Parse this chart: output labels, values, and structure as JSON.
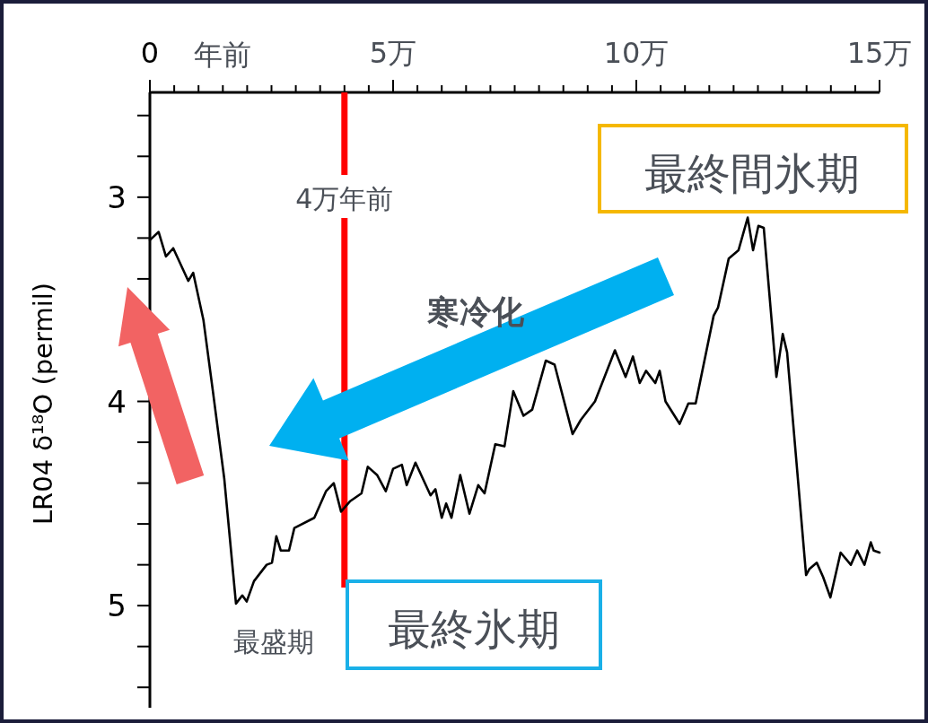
{
  "chart_data": {
    "type": "line",
    "xlabel": "年前",
    "ylabel": "LR04 δ¹⁸O (permil)",
    "xlim": [
      0,
      15
    ],
    "xticks": [
      {
        "value": 0,
        "label": "0"
      },
      {
        "value": 0.5,
        "label": null
      },
      {
        "value": 1,
        "label": null
      },
      {
        "value": 1.5,
        "label": null
      },
      {
        "value": 2,
        "label": null
      },
      {
        "value": 2.5,
        "label": null
      },
      {
        "value": 3,
        "label": null
      },
      {
        "value": 3.5,
        "label": null
      },
      {
        "value": 4,
        "label": null
      },
      {
        "value": 4.5,
        "label": null
      },
      {
        "value": 5,
        "label": "5万"
      },
      {
        "value": 5.5,
        "label": null
      },
      {
        "value": 6,
        "label": null
      },
      {
        "value": 6.5,
        "label": null
      },
      {
        "value": 7,
        "label": null
      },
      {
        "value": 7.5,
        "label": null
      },
      {
        "value": 8,
        "label": null
      },
      {
        "value": 8.5,
        "label": null
      },
      {
        "value": 9,
        "label": null
      },
      {
        "value": 9.5,
        "label": null
      },
      {
        "value": 10,
        "label": "10万"
      },
      {
        "value": 10.5,
        "label": null
      },
      {
        "value": 11,
        "label": null
      },
      {
        "value": 11.5,
        "label": null
      },
      {
        "value": 12,
        "label": null
      },
      {
        "value": 12.5,
        "label": null
      },
      {
        "value": 13,
        "label": null
      },
      {
        "value": 13.5,
        "label": null
      },
      {
        "value": 14,
        "label": null
      },
      {
        "value": 14.5,
        "label": null
      },
      {
        "value": 15,
        "label": "15万"
      }
    ],
    "ylim": [
      5.5,
      2.5
    ],
    "yticks": [
      {
        "value": 2.6,
        "label": null
      },
      {
        "value": 2.8,
        "label": null
      },
      3,
      {
        "value": 3.2,
        "label": null
      },
      {
        "value": 3.4,
        "label": null
      },
      {
        "value": 3.6,
        "label": null
      },
      {
        "value": 3.8,
        "label": null
      },
      4,
      {
        "value": 4.2,
        "label": null
      },
      {
        "value": 4.4,
        "label": null
      },
      {
        "value": 4.6,
        "label": null
      },
      {
        "value": 4.8,
        "label": null
      },
      5,
      {
        "value": 5.2,
        "label": null
      },
      {
        "value": 5.4,
        "label": null
      }
    ],
    "series": [
      {
        "color": "#000000",
        "x": [
          0,
          0.18,
          0.33,
          0.48,
          0.79,
          0.89,
          1.1,
          1.29,
          1.53,
          1.77,
          1.9,
          1.99,
          2.14,
          2.4,
          2.51,
          2.6,
          2.69,
          2.86,
          2.97,
          3.38,
          3.62,
          3.78,
          3.93,
          4.11,
          4.35,
          4.48,
          4.67,
          4.85,
          5.0,
          5.18,
          5.28,
          5.46,
          5.77,
          5.87,
          6.0,
          6.09,
          6.2,
          6.38,
          6.57,
          6.75,
          6.88,
          7.1,
          7.29,
          7.47,
          7.68,
          7.86,
          8.14,
          8.32,
          8.69,
          8.86,
          9.15,
          9.56,
          9.78,
          9.93,
          10.07,
          10.2,
          10.39,
          10.48,
          10.6,
          10.89,
          11.07,
          11.22,
          11.59,
          11.68,
          11.9,
          12.1,
          12.29,
          12.4,
          12.51,
          12.62,
          12.88,
          13.01,
          13.1,
          13.49,
          13.56,
          13.71,
          13.84,
          13.99,
          14.2,
          14.41,
          14.54,
          14.69,
          14.82,
          14.88,
          15.0
        ],
        "values": [
          3.21,
          3.17,
          3.29,
          3.25,
          3.41,
          3.37,
          3.6,
          3.94,
          4.38,
          4.99,
          4.95,
          4.98,
          4.88,
          4.8,
          4.79,
          4.66,
          4.73,
          4.73,
          4.62,
          4.57,
          4.44,
          4.4,
          4.54,
          4.49,
          4.45,
          4.32,
          4.36,
          4.44,
          4.33,
          4.31,
          4.41,
          4.3,
          4.46,
          4.43,
          4.57,
          4.5,
          4.57,
          4.36,
          4.55,
          4.41,
          4.45,
          4.21,
          4.22,
          3.95,
          4.07,
          4.04,
          3.8,
          3.82,
          4.16,
          4.09,
          4.0,
          3.75,
          3.88,
          3.78,
          3.91,
          3.85,
          3.91,
          3.85,
          4.0,
          4.11,
          4.01,
          4.01,
          3.58,
          3.54,
          3.3,
          3.26,
          3.1,
          3.26,
          3.14,
          3.15,
          3.88,
          3.67,
          3.76,
          4.85,
          4.82,
          4.79,
          4.86,
          4.96,
          4.74,
          4.8,
          4.73,
          4.8,
          4.69,
          4.73,
          4.74
        ]
      }
    ],
    "ref_lines": [
      {
        "axis": "x",
        "value": 4,
        "label": "4万年前",
        "color": "#ff0000"
      }
    ],
    "annotations": [
      "最終間氷期",
      "寒冷化",
      "最盛期",
      "最終氷期"
    ],
    "grid": false,
    "marker": "none",
    "line_style": "solid"
  }
}
